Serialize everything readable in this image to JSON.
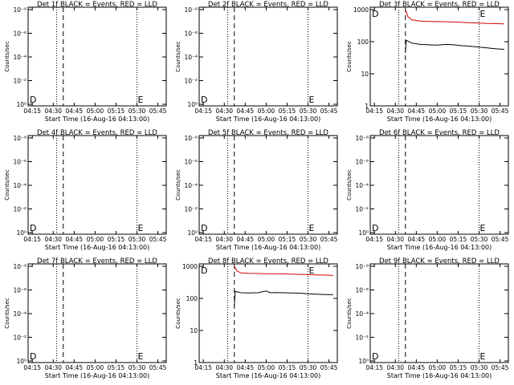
{
  "panels": [
    {
      "title": "Det 1f BLACK = Events, RED = LLD",
      "ylabel": "Counts/sec",
      "xlabel": "Start Time (16-Aug-16 04:13:00)",
      "ytype": "pow",
      "yticks": [
        "10⁻⁸",
        "10⁻⁶",
        "10⁻⁴",
        "10⁻²",
        "10⁰"
      ],
      "mark_left": "D",
      "mark_right": "E"
    },
    {
      "title": "Det 2f BLACK = Events, RED = LLD",
      "ylabel": "Counts/sec",
      "xlabel": "Start Time (16-Aug-16 04:13:00)",
      "ytype": "pow",
      "yticks": [
        "10⁻⁸",
        "10⁻⁶",
        "10⁻⁴",
        "10⁻²",
        "10⁰"
      ],
      "mark_left": "D",
      "mark_right": "E"
    },
    {
      "title": "Det 3f BLACK = Events, RED = LLD",
      "ylabel": "Counts/sec",
      "xlabel": "Start Time (16-Aug-16 04:13:00)",
      "ytype": "lin",
      "yticks": [
        "1000",
        "100",
        "10",
        "1"
      ],
      "mark_left": "D",
      "mark_right": "E"
    },
    {
      "title": "Det 4f BLACK = Events, RED = LLD",
      "ylabel": "Counts/sec",
      "xlabel": "Start Time (16-Aug-16 04:13:00)",
      "ytype": "pow",
      "yticks": [
        "10⁻⁸",
        "10⁻⁶",
        "10⁻⁴",
        "10⁻²",
        "10⁰"
      ],
      "mark_left": "D",
      "mark_right": "E"
    },
    {
      "title": "Det 5f BLACK = Events, RED = LLD",
      "ylabel": "Counts/sec",
      "xlabel": "Start Time (16-Aug-16 04:13:00)",
      "ytype": "pow",
      "yticks": [
        "10⁻⁸",
        "10⁻⁶",
        "10⁻⁴",
        "10⁻²",
        "10⁰"
      ],
      "mark_left": "D",
      "mark_right": "E"
    },
    {
      "title": "Det 6f BLACK = Events, RED = LLD",
      "ylabel": "Counts/sec",
      "xlabel": "Start Time (16-Aug-16 04:13:00)",
      "ytype": "pow",
      "yticks": [
        "10⁻⁸",
        "10⁻⁶",
        "10⁻⁴",
        "10⁻²",
        "10⁰"
      ],
      "mark_left": "D",
      "mark_right": "E"
    },
    {
      "title": "Det 7f BLACK = Events, RED = LLD",
      "ylabel": "Counts/sec",
      "xlabel": "Start Time (16-Aug-16 04:13:00)",
      "ytype": "pow",
      "yticks": [
        "10⁻⁸",
        "10⁻⁶",
        "10⁻⁴",
        "10⁻²",
        "10⁰"
      ],
      "mark_left": "D",
      "mark_right": "E"
    },
    {
      "title": "Det 8f BLACK = Events, RED = LLD",
      "ylabel": "Counts/sec",
      "xlabel": "Start Time (16-Aug-16 04:13:00)",
      "ytype": "lin",
      "yticks": [
        "1000",
        "100",
        "10",
        "1"
      ],
      "mark_left": "D",
      "mark_right": "E"
    },
    {
      "title": "Det 9f BLACK = Events, RED = LLD",
      "ylabel": "Counts/sec",
      "xlabel": "Start Time (16-Aug-16 04:13:00)",
      "ytype": "pow",
      "yticks": [
        "10⁻⁸",
        "10⁻⁶",
        "10⁻⁴",
        "10⁻²",
        "10⁰"
      ],
      "mark_left": "D",
      "mark_right": "E"
    }
  ],
  "xticks": [
    "04:15",
    "04:30",
    "04:45",
    "05:00",
    "05:15",
    "05:30",
    "05:45"
  ],
  "chart_data": [
    {
      "type": "line",
      "title": "Det 1f BLACK = Events, RED = LLD",
      "xlabel": "Start Time (16-Aug-16 04:13:00)",
      "ylabel": "Counts/sec",
      "x_ticks": [
        "04:15",
        "04:30",
        "04:45",
        "05:00",
        "05:15",
        "05:30",
        "05:45"
      ],
      "y_scale": "log",
      "y_ticks": [
        "10⁰",
        "10⁻²",
        "10⁻⁴",
        "10⁻⁶",
        "10⁻⁸"
      ],
      "series": [],
      "vlines": [
        {
          "x": "04:32",
          "style": "dotted"
        },
        {
          "x": "04:37",
          "style": "dashed"
        },
        {
          "x": "05:30",
          "style": "dotted"
        }
      ],
      "annotations": [
        "D",
        "E"
      ]
    },
    {
      "type": "line",
      "title": "Det 2f BLACK = Events, RED = LLD",
      "xlabel": "Start Time (16-Aug-16 04:13:00)",
      "ylabel": "Counts/sec",
      "x_ticks": [
        "04:15",
        "04:30",
        "04:45",
        "05:00",
        "05:15",
        "05:30",
        "05:45"
      ],
      "y_scale": "log",
      "y_ticks": [
        "10⁰",
        "10⁻²",
        "10⁻⁴",
        "10⁻⁶",
        "10⁻⁸"
      ],
      "series": [],
      "vlines": [
        {
          "x": "04:32",
          "style": "dotted"
        },
        {
          "x": "04:37",
          "style": "dashed"
        },
        {
          "x": "05:30",
          "style": "dotted"
        }
      ],
      "annotations": [
        "D",
        "E"
      ]
    },
    {
      "type": "line",
      "title": "Det 3f BLACK = Events, RED = LLD",
      "xlabel": "Start Time (16-Aug-16 04:13:00)",
      "ylabel": "Counts/sec",
      "x_ticks": [
        "04:15",
        "04:30",
        "04:45",
        "05:00",
        "05:15",
        "05:30",
        "05:45"
      ],
      "y_scale": "log",
      "y_ticks": [
        "1",
        "10",
        "100",
        "1000"
      ],
      "ylim": [
        1,
        1000
      ],
      "series": [
        {
          "color": "#d40000",
          "points": [
            [
              4.62,
              1000
            ],
            [
              4.65,
              600
            ],
            [
              4.7,
              480
            ],
            [
              4.8,
              440
            ],
            [
              4.9,
              430
            ],
            [
              5.0,
              425
            ],
            [
              5.1,
              420
            ],
            [
              5.2,
              410
            ],
            [
              5.3,
              400
            ],
            [
              5.4,
              390
            ],
            [
              5.5,
              380
            ],
            [
              5.6,
              370
            ],
            [
              5.7,
              365
            ],
            [
              5.8,
              360
            ]
          ]
        },
        {
          "color": "#000000",
          "points": [
            [
              4.62,
              45
            ],
            [
              4.63,
              110
            ],
            [
              4.7,
              90
            ],
            [
              4.8,
              82
            ],
            [
              4.9,
              80
            ],
            [
              5.0,
              78
            ],
            [
              5.1,
              82
            ],
            [
              5.2,
              80
            ],
            [
              5.3,
              75
            ],
            [
              5.4,
              72
            ],
            [
              5.5,
              68
            ],
            [
              5.6,
              64
            ],
            [
              5.7,
              60
            ],
            [
              5.8,
              58
            ]
          ]
        }
      ],
      "vlines": [
        {
          "x": "04:32",
          "style": "dotted"
        },
        {
          "x": "04:37",
          "style": "dashed"
        },
        {
          "x": "05:30",
          "style": "dotted"
        }
      ],
      "annotations": [
        "D",
        "E"
      ]
    },
    {
      "type": "line",
      "title": "Det 4f BLACK = Events, RED = LLD",
      "xlabel": "Start Time (16-Aug-16 04:13:00)",
      "ylabel": "Counts/sec",
      "x_ticks": [
        "04:15",
        "04:30",
        "04:45",
        "05:00",
        "05:15",
        "05:30",
        "05:45"
      ],
      "y_scale": "log",
      "y_ticks": [
        "10⁰",
        "10⁻²",
        "10⁻⁴",
        "10⁻⁶",
        "10⁻⁸"
      ],
      "series": [],
      "vlines": [
        {
          "x": "04:32",
          "style": "dotted"
        },
        {
          "x": "04:37",
          "style": "dashed"
        },
        {
          "x": "05:30",
          "style": "dotted"
        }
      ],
      "annotations": [
        "D",
        "E"
      ]
    },
    {
      "type": "line",
      "title": "Det 5f BLACK = Events, RED = LLD",
      "xlabel": "Start Time (16-Aug-16 04:13:00)",
      "ylabel": "Counts/sec",
      "x_ticks": [
        "04:15",
        "04:30",
        "04:45",
        "05:00",
        "05:15",
        "05:30",
        "05:45"
      ],
      "y_scale": "log",
      "y_ticks": [
        "10⁰",
        "10⁻²",
        "10⁻⁴",
        "10⁻⁶",
        "10⁻⁸"
      ],
      "series": [],
      "vlines": [
        {
          "x": "04:32",
          "style": "dotted"
        },
        {
          "x": "04:37",
          "style": "dashed"
        },
        {
          "x": "05:30",
          "style": "dotted"
        }
      ],
      "annotations": [
        "D",
        "E"
      ]
    },
    {
      "type": "line",
      "title": "Det 6f BLACK = Events, RED = LLD",
      "xlabel": "Start Time (16-Aug-16 04:13:00)",
      "ylabel": "Counts/sec",
      "x_ticks": [
        "04:15",
        "04:30",
        "04:45",
        "05:00",
        "05:15",
        "05:30",
        "05:45"
      ],
      "y_scale": "log",
      "y_ticks": [
        "10⁰",
        "10⁻²",
        "10⁻⁴",
        "10⁻⁶",
        "10⁻⁸"
      ],
      "series": [],
      "vlines": [
        {
          "x": "04:32",
          "style": "dotted"
        },
        {
          "x": "04:37",
          "style": "dashed"
        },
        {
          "x": "05:30",
          "style": "dotted"
        }
      ],
      "annotations": [
        "D",
        "E"
      ]
    },
    {
      "type": "line",
      "title": "Det 7f BLACK = Events, RED = LLD",
      "xlabel": "Start Time (16-Aug-16 04:13:00)",
      "ylabel": "Counts/sec",
      "x_ticks": [
        "04:15",
        "04:30",
        "04:45",
        "05:00",
        "05:15",
        "05:30",
        "05:45"
      ],
      "y_scale": "log",
      "y_ticks": [
        "10⁰",
        "10⁻²",
        "10⁻⁴",
        "10⁻⁶",
        "10⁻⁸"
      ],
      "series": [],
      "vlines": [
        {
          "x": "04:32",
          "style": "dotted"
        },
        {
          "x": "04:37",
          "style": "dashed"
        },
        {
          "x": "05:30",
          "style": "dotted"
        }
      ],
      "annotations": [
        "D",
        "E"
      ]
    },
    {
      "type": "line",
      "title": "Det 8f BLACK = Events, RED = LLD",
      "xlabel": "Start Time (16-Aug-16 04:13:00)",
      "ylabel": "Counts/sec",
      "x_ticks": [
        "04:15",
        "04:30",
        "04:45",
        "05:00",
        "05:15",
        "05:30",
        "05:45"
      ],
      "y_scale": "log",
      "y_ticks": [
        "1",
        "10",
        "100",
        "1000"
      ],
      "ylim": [
        1,
        1000
      ],
      "series": [
        {
          "color": "#d40000",
          "points": [
            [
              4.62,
              1000
            ],
            [
              4.65,
              720
            ],
            [
              4.7,
              620
            ],
            [
              4.8,
              600
            ],
            [
              4.9,
              595
            ],
            [
              5.0,
              590
            ],
            [
              5.1,
              585
            ],
            [
              5.2,
              580
            ],
            [
              5.3,
              570
            ],
            [
              5.4,
              560
            ],
            [
              5.5,
              550
            ],
            [
              5.6,
              540
            ],
            [
              5.7,
              530
            ],
            [
              5.8,
              520
            ]
          ]
        },
        {
          "color": "#000000",
          "points": [
            [
              4.62,
              60
            ],
            [
              4.63,
              165
            ],
            [
              4.7,
              150
            ],
            [
              4.8,
              148
            ],
            [
              4.9,
              150
            ],
            [
              5.0,
              170
            ],
            [
              5.05,
              150
            ],
            [
              5.1,
              152
            ],
            [
              5.2,
              150
            ],
            [
              5.3,
              148
            ],
            [
              5.4,
              145
            ],
            [
              5.5,
              140
            ],
            [
              5.6,
              135
            ],
            [
              5.7,
              132
            ],
            [
              5.8,
              130
            ]
          ]
        }
      ],
      "vlines": [
        {
          "x": "04:32",
          "style": "dotted"
        },
        {
          "x": "04:37",
          "style": "dashed"
        },
        {
          "x": "05:30",
          "style": "dotted"
        }
      ],
      "annotations": [
        "D",
        "E"
      ]
    },
    {
      "type": "line",
      "title": "Det 9f BLACK = Events, RED = LLD",
      "xlabel": "Start Time (16-Aug-16 04:13:00)",
      "ylabel": "Counts/sec",
      "x_ticks": [
        "04:15",
        "04:30",
        "04:45",
        "05:00",
        "05:15",
        "05:30",
        "05:45"
      ],
      "y_scale": "log",
      "y_ticks": [
        "10⁰",
        "10⁻²",
        "10⁻⁴",
        "10⁻⁶",
        "10⁻⁸"
      ],
      "series": [],
      "vlines": [
        {
          "x": "04:32",
          "style": "dotted"
        },
        {
          "x": "04:37",
          "style": "dashed"
        },
        {
          "x": "05:30",
          "style": "dotted"
        }
      ],
      "annotations": [
        "D",
        "E"
      ]
    }
  ]
}
